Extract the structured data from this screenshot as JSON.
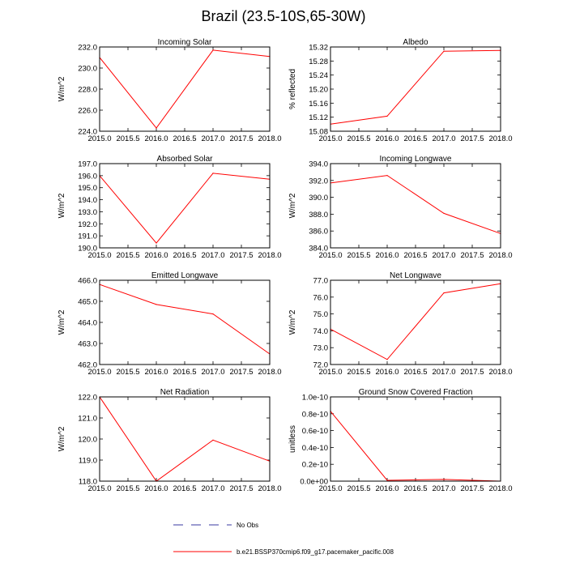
{
  "title": "Brazil (23.5-10S,65-30W)",
  "colors": {
    "series": "#ff0000",
    "no_obs": "#3a3aa0",
    "axis": "#000000"
  },
  "legend": {
    "items": [
      {
        "label": "No Obs",
        "style": "dashed"
      },
      {
        "label": "b.e21.BSSP370cmip6.f09_g17.pacemaker_pacific.008",
        "style": "solid"
      }
    ]
  },
  "chart_data": [
    {
      "type": "line",
      "title": "Incoming Solar",
      "ylabel": "W/m^2",
      "x": [
        2015.0,
        2016.0,
        2017.0,
        2018.0
      ],
      "y": [
        231.0,
        224.3,
        231.7,
        231.1
      ],
      "xlim": [
        2015.0,
        2018.0
      ],
      "ylim": [
        224.0,
        232.0
      ],
      "xticks": [
        "2015.0",
        "2015.5",
        "2016.0",
        "2016.5",
        "2017.0",
        "2017.5",
        "2018.0"
      ],
      "yticks": [
        "224.0",
        "226.0",
        "228.0",
        "230.0",
        "232.0"
      ]
    },
    {
      "type": "line",
      "title": "Albedo",
      "ylabel": "% reflected",
      "x": [
        2015.0,
        2016.0,
        2017.0,
        2018.0
      ],
      "y": [
        15.1,
        15.123,
        15.308,
        15.31
      ],
      "xlim": [
        2015.0,
        2018.0
      ],
      "ylim": [
        15.08,
        15.32
      ],
      "xticks": [
        "2015.0",
        "2015.5",
        "2016.0",
        "2016.5",
        "2017.0",
        "2017.5",
        "2018.0"
      ],
      "yticks": [
        "15.08",
        "15.12",
        "15.16",
        "15.20",
        "15.24",
        "15.28",
        "15.32"
      ]
    },
    {
      "type": "line",
      "title": "Absorbed Solar",
      "ylabel": "W/m^2",
      "x": [
        2015.0,
        2016.0,
        2017.0,
        2018.0
      ],
      "y": [
        196.0,
        190.4,
        196.2,
        195.7
      ],
      "xlim": [
        2015.0,
        2018.0
      ],
      "ylim": [
        190.0,
        197.0
      ],
      "xticks": [
        "2015.0",
        "2015.5",
        "2016.0",
        "2016.5",
        "2017.0",
        "2017.5",
        "2018.0"
      ],
      "yticks": [
        "190.0",
        "191.0",
        "192.0",
        "193.0",
        "194.0",
        "195.0",
        "196.0",
        "197.0"
      ]
    },
    {
      "type": "line",
      "title": "Incoming Longwave",
      "ylabel": "W/m^2",
      "x": [
        2015.0,
        2016.0,
        2017.0,
        2018.0
      ],
      "y": [
        391.7,
        392.6,
        388.1,
        385.7
      ],
      "xlim": [
        2015.0,
        2018.0
      ],
      "ylim": [
        384.0,
        394.0
      ],
      "xticks": [
        "2015.0",
        "2015.5",
        "2016.0",
        "2016.5",
        "2017.0",
        "2017.5",
        "2018.0"
      ],
      "yticks": [
        "384.0",
        "386.0",
        "388.0",
        "390.0",
        "392.0",
        "394.0"
      ]
    },
    {
      "type": "line",
      "title": "Emitted Longwave",
      "ylabel": "W/m^2",
      "x": [
        2015.0,
        2016.0,
        2017.0,
        2018.0
      ],
      "y": [
        465.8,
        464.85,
        464.4,
        462.5
      ],
      "xlim": [
        2015.0,
        2018.0
      ],
      "ylim": [
        462.0,
        466.0
      ],
      "xticks": [
        "2015.0",
        "2015.5",
        "2016.0",
        "2016.5",
        "2017.0",
        "2017.5",
        "2018.0"
      ],
      "yticks": [
        "462.0",
        "463.0",
        "464.0",
        "465.0",
        "466.0"
      ]
    },
    {
      "type": "line",
      "title": "Net Longwave",
      "ylabel": "W/m^2",
      "x": [
        2015.0,
        2016.0,
        2017.0,
        2018.0
      ],
      "y": [
        74.1,
        72.3,
        76.25,
        76.8
      ],
      "xlim": [
        2015.0,
        2018.0
      ],
      "ylim": [
        72.0,
        77.0
      ],
      "xticks": [
        "2015.0",
        "2015.5",
        "2016.0",
        "2016.5",
        "2017.0",
        "2017.5",
        "2018.0"
      ],
      "yticks": [
        "72.0",
        "73.0",
        "74.0",
        "75.0",
        "76.0",
        "77.0"
      ]
    },
    {
      "type": "line",
      "title": "Net Radiation",
      "ylabel": "W/m^2",
      "x": [
        2015.0,
        2016.0,
        2017.0,
        2018.0
      ],
      "y": [
        122.0,
        118.0,
        119.95,
        118.95
      ],
      "xlim": [
        2015.0,
        2018.0
      ],
      "ylim": [
        118.0,
        122.0
      ],
      "xticks": [
        "2015.0",
        "2015.5",
        "2016.0",
        "2016.5",
        "2017.0",
        "2017.5",
        "2018.0"
      ],
      "yticks": [
        "118.0",
        "119.0",
        "120.0",
        "121.0",
        "122.0"
      ]
    },
    {
      "type": "line",
      "title": "Ground Snow Covered Fraction",
      "ylabel": "unitless",
      "x": [
        2015.0,
        2016.0,
        2017.0,
        2018.0
      ],
      "y": [
        8.3e-11,
        1e-12,
        2e-12,
        0
      ],
      "xlim": [
        2015.0,
        2018.0
      ],
      "ylim": [
        0,
        1e-10
      ],
      "xticks": [
        "2015.0",
        "2015.5",
        "2016.0",
        "2016.5",
        "2017.0",
        "2017.5",
        "2018.0"
      ],
      "yticks": [
        "0.0e+00",
        "0.2e-10",
        "0.4e-10",
        "0.6e-10",
        "0.8e-10",
        "1.0e-10"
      ]
    }
  ]
}
